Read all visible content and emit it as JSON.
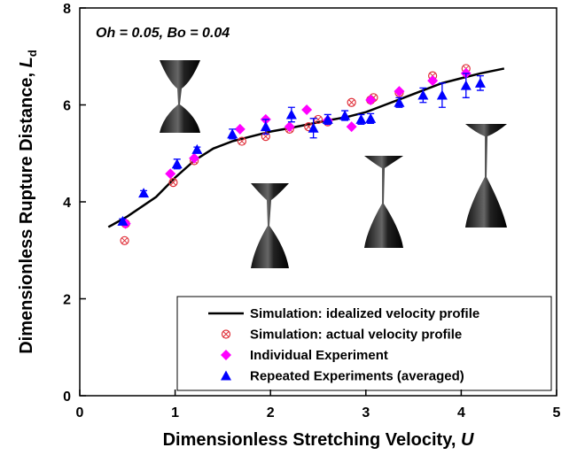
{
  "chart_data": {
    "type": "scatter",
    "annotation": "Oh = 0.05, Bo = 0.04",
    "xlabel": {
      "text": "Dimensionless Stretching Velocity, ",
      "symbol": "U"
    },
    "ylabel": {
      "text": "Dimensionless Rupture Distance, ",
      "symbol": "L",
      "subscript": "d"
    },
    "xlim": [
      0,
      5
    ],
    "xticks": [
      0,
      1,
      2,
      3,
      4,
      5
    ],
    "ylim": [
      0,
      8
    ],
    "yticks": [
      0,
      2,
      4,
      6,
      8
    ],
    "series": [
      {
        "name": "Simulation: idealized velocity profile",
        "type": "line",
        "color": "#000000",
        "x": [
          0.3,
          0.5,
          0.8,
          1.0,
          1.2,
          1.4,
          1.6,
          1.8,
          2.0,
          2.2,
          2.4,
          2.6,
          2.8,
          3.0,
          3.2,
          3.4,
          3.6,
          3.8,
          4.0,
          4.2,
          4.45
        ],
        "values": [
          3.48,
          3.7,
          4.1,
          4.5,
          4.85,
          5.1,
          5.25,
          5.35,
          5.45,
          5.52,
          5.6,
          5.68,
          5.75,
          5.85,
          6.0,
          6.15,
          6.3,
          6.45,
          6.55,
          6.65,
          6.75
        ]
      },
      {
        "name": "Simulation: actual velocity profile",
        "type": "scatter",
        "marker": "circle-x",
        "color": "#e0303a",
        "x": [
          0.47,
          0.48,
          0.98,
          1.2,
          1.7,
          1.95,
          2.2,
          2.4,
          2.5,
          2.6,
          2.85,
          3.05,
          3.08,
          3.35,
          3.7,
          4.05
        ],
        "values": [
          3.2,
          3.55,
          4.4,
          4.85,
          5.25,
          5.35,
          5.5,
          5.55,
          5.7,
          5.65,
          6.05,
          6.1,
          6.15,
          6.25,
          6.6,
          6.75
        ]
      },
      {
        "name": "Individual Experiment",
        "type": "scatter",
        "marker": "diamond",
        "color": "#ff00ff",
        "x": [
          0.48,
          0.95,
          1.2,
          1.68,
          1.95,
          2.2,
          2.38,
          2.6,
          2.85,
          3.05,
          3.35,
          3.7,
          4.05
        ],
        "values": [
          3.55,
          4.58,
          4.9,
          5.5,
          5.7,
          5.55,
          5.9,
          5.68,
          5.55,
          6.1,
          6.28,
          6.5,
          6.65
        ]
      },
      {
        "name": "Repeated Experiments (averaged)",
        "type": "scatter",
        "marker": "triangle",
        "color": "#0000ff",
        "x": [
          0.45,
          0.67,
          1.02,
          1.23,
          1.6,
          1.95,
          2.22,
          2.45,
          2.6,
          2.78,
          2.95,
          3.05,
          3.35,
          3.6,
          3.8,
          4.05,
          4.2
        ],
        "values": [
          3.6,
          4.18,
          4.78,
          5.08,
          5.4,
          5.55,
          5.8,
          5.52,
          5.7,
          5.78,
          5.7,
          5.72,
          6.05,
          6.2,
          6.2,
          6.4,
          6.45
        ],
        "errors": [
          0.05,
          0.05,
          0.1,
          0.05,
          0.1,
          0.15,
          0.15,
          0.2,
          0.1,
          0.1,
          0.1,
          0.1,
          0.1,
          0.15,
          0.25,
          0.25,
          0.15
        ]
      }
    ]
  }
}
